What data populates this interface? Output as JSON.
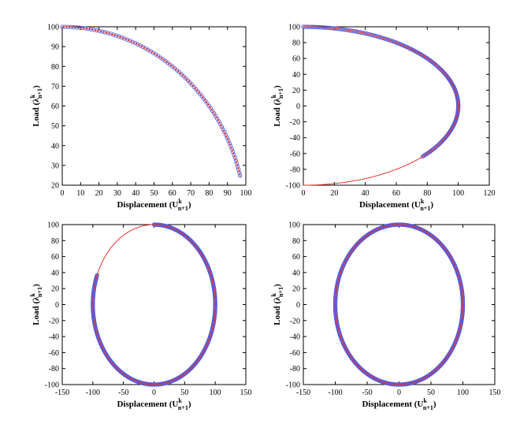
{
  "chart_data": [
    {
      "type": "scatter",
      "title": "",
      "xlabel": "Displacement (U^k_{n+1})",
      "ylabel": "Load (λ^k_{n+1})",
      "xlim": [
        0,
        100
      ],
      "ylim": [
        20,
        100
      ],
      "xticks": [
        0,
        10,
        20,
        30,
        40,
        50,
        60,
        70,
        80,
        90,
        100
      ],
      "yticks": [
        20,
        30,
        40,
        50,
        60,
        70,
        80,
        90,
        100
      ],
      "grid": false,
      "legend": "none",
      "curve": {
        "shape": "circle-arc",
        "radius": 100,
        "theta_start_deg": 90,
        "theta_end_deg": 14
      },
      "markers": {
        "shape": "circle-arc",
        "radius": 100,
        "theta_start_deg": 90,
        "theta_end_deg": 14,
        "step_deg": 0.9
      },
      "series": [
        {
          "style": "line",
          "color": "#e8332c"
        },
        {
          "style": "markers",
          "color": "#5b5bd6"
        }
      ]
    },
    {
      "type": "scatter",
      "title": "",
      "xlabel": "Displacement (U^k_{n+1})",
      "ylabel": "Load (λ^k_{n+1})",
      "xlim": [
        0,
        120
      ],
      "ylim": [
        -100,
        100
      ],
      "xticks": [
        0,
        20,
        40,
        60,
        80,
        100,
        120
      ],
      "yticks": [
        -100,
        -80,
        -60,
        -40,
        -20,
        0,
        20,
        40,
        60,
        80,
        100
      ],
      "grid": false,
      "legend": "none",
      "curve": {
        "shape": "circle-arc",
        "radius": 100,
        "theta_start_deg": 90,
        "theta_end_deg": -90
      },
      "markers": {
        "shape": "circle-arc",
        "radius": 100,
        "theta_start_deg": 90,
        "theta_end_deg": -40,
        "step_deg": 0.6
      },
      "series": [
        {
          "style": "line",
          "color": "#e8332c"
        },
        {
          "style": "markers",
          "color": "#5b5bd6"
        }
      ]
    },
    {
      "type": "scatter",
      "title": "",
      "xlabel": "Displacement (U^k_{n+1})",
      "ylabel": "Load (λ^k_{n+1})",
      "xlim": [
        -150,
        150
      ],
      "ylim": [
        -100,
        100
      ],
      "xticks": [
        -150,
        -100,
        -50,
        0,
        50,
        100,
        150
      ],
      "yticks": [
        -100,
        -80,
        -60,
        -40,
        -20,
        0,
        20,
        40,
        60,
        80,
        100
      ],
      "grid": false,
      "legend": "none",
      "curve": {
        "shape": "circle-arc",
        "radius": 100,
        "theta_start_deg": 90,
        "theta_end_deg": -270
      },
      "markers": {
        "shape": "circle-arc",
        "radius": 100,
        "theta_start_deg": 90,
        "theta_end_deg": -202,
        "step_deg": 0.6
      },
      "series": [
        {
          "style": "line",
          "color": "#e8332c"
        },
        {
          "style": "markers",
          "color": "#5b5bd6"
        }
      ]
    },
    {
      "type": "scatter",
      "title": "",
      "xlabel": "Displacement (U^k_{n+1})",
      "ylabel": "Load (λ^k_{n+1})",
      "xlim": [
        -150,
        150
      ],
      "ylim": [
        -100,
        100
      ],
      "xticks": [
        -150,
        -100,
        -50,
        0,
        50,
        100,
        150
      ],
      "yticks": [
        -100,
        -80,
        -60,
        -40,
        -20,
        0,
        20,
        40,
        60,
        80,
        100
      ],
      "grid": false,
      "legend": "none",
      "curve": {
        "shape": "circle-arc",
        "radius": 100,
        "theta_start_deg": 90,
        "theta_end_deg": -270
      },
      "markers": {
        "shape": "circle-arc",
        "radius": 100,
        "theta_start_deg": 90,
        "theta_end_deg": -270,
        "step_deg": 0.6
      },
      "series": [
        {
          "style": "line",
          "color": "#e8332c"
        },
        {
          "style": "markers",
          "color": "#5b5bd6"
        }
      ]
    }
  ]
}
